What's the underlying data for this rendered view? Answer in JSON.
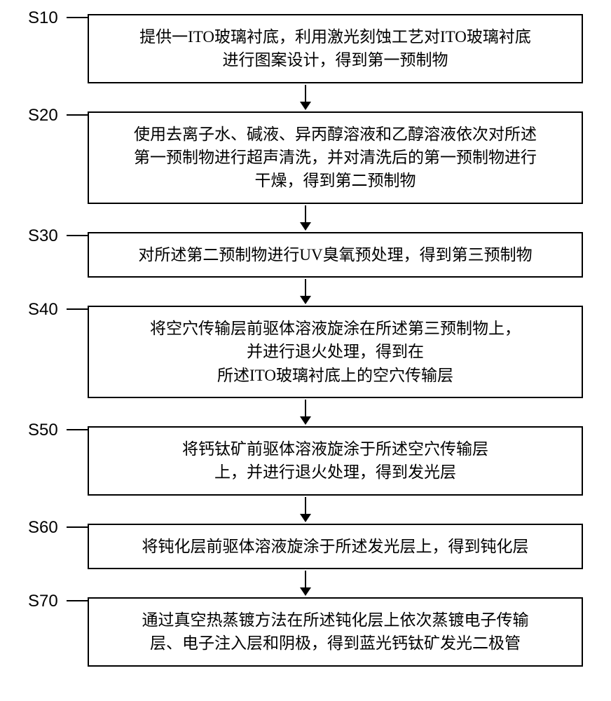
{
  "flowchart": {
    "type": "flowchart",
    "background_color": "#ffffff",
    "border_color": "#000000",
    "text_color": "#000000",
    "font_size": 23,
    "label_font_size": 24,
    "border_width": 2,
    "arrow_color": "#000000",
    "steps": [
      {
        "label": "S10",
        "lines": [
          "提供一ITO玻璃衬底，利用激光刻蚀工艺对ITO玻璃衬底",
          "进行图案设计，得到第一预制物"
        ]
      },
      {
        "label": "S20",
        "lines": [
          "使用去离子水、碱液、异丙醇溶液和乙醇溶液依次对所述",
          "第一预制物进行超声清洗，并对清洗后的第一预制物进行",
          "干燥，得到第二预制物"
        ]
      },
      {
        "label": "S30",
        "lines": [
          "对所述第二预制物进行UV臭氧预处理，得到第三预制物"
        ]
      },
      {
        "label": "S40",
        "lines": [
          "将空穴传输层前驱体溶液旋涂在所述第三预制物上，",
          "并进行退火处理，得到在",
          "所述ITO玻璃衬底上的空穴传输层"
        ]
      },
      {
        "label": "S50",
        "lines": [
          "将钙钛矿前驱体溶液旋涂于所述空穴传输层",
          "上，并进行退火处理，得到发光层"
        ]
      },
      {
        "label": "S60",
        "lines": [
          "将钝化层前驱体溶液旋涂于所述发光层上，得到钝化层"
        ]
      },
      {
        "label": "S70",
        "lines": [
          "通过真空热蒸镀方法在所述钝化层上依次蒸镀电子传输",
          "层、电子注入层和阴极，得到蓝光钙钛矿发光二极管"
        ]
      }
    ]
  }
}
